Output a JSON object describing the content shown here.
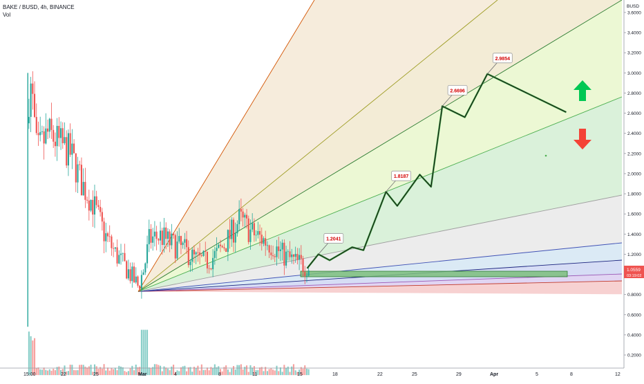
{
  "header": {
    "symbol_line": "BAKE / BUSD, 4h, BINANCE",
    "indicator": "Vol"
  },
  "price_axis": {
    "unit": "BUSD",
    "last_price": "1.0559",
    "countdown": "03:19:02"
  },
  "colors": {
    "up_candle": "#26a69a",
    "down_candle": "#ef5350",
    "path_green": "#4caf50",
    "label_red": "#d50000",
    "arrow_up": "#00c853",
    "arrow_down": "#f44336"
  },
  "icons": {
    "up": "arrow-up-icon",
    "down": "arrow-down-icon"
  },
  "chart_data": {
    "type": "candlestick",
    "title": "BAKE / BUSD, 4h, BINANCE",
    "x_ticks": [
      "15:00",
      "22",
      "25",
      "Mar",
      "4",
      "8",
      "11",
      "15",
      "18",
      "22",
      "25",
      "29",
      "Apr",
      "5",
      "8",
      "12"
    ],
    "y_ticks": [
      "3.6000",
      "3.4000",
      "3.2000",
      "3.0000",
      "2.8000",
      "2.6000",
      "2.4000",
      "2.2000",
      "2.0000",
      "1.8000",
      "1.6000",
      "1.4000",
      "1.2000",
      "1.0000",
      "0.8000",
      "0.6000",
      "0.4000",
      "0.2000"
    ],
    "y_range": [
      0.0,
      3.65
    ],
    "price_panel_range": [
      0.8,
      3.65
    ],
    "volume_panel_range": [
      0.0,
      0.6
    ],
    "candles_summary": [
      {
        "period": "Feb 19-20",
        "high": 3.0,
        "low": 0.48
      },
      {
        "period": "Feb 20-24",
        "high": 2.7,
        "low": 1.55
      },
      {
        "period": "Feb 25-Mar 1",
        "high": 1.8,
        "low": 0.83
      },
      {
        "period": "Mar 2-8",
        "high": 1.45,
        "low": 1.1
      },
      {
        "period": "Mar 9-11",
        "high": 1.6,
        "low": 1.2
      },
      {
        "period": "Mar 12-16",
        "high": 1.28,
        "low": 1.06
      }
    ],
    "projection_labels": [
      "1.2041",
      "1.8187",
      "2.6696",
      "2.9854"
    ],
    "projection_path": [
      {
        "date": "Mar 16",
        "price": 1.06
      },
      {
        "date": "Mar 17",
        "price": 1.2
      },
      {
        "date": "Mar 18",
        "price": 1.14
      },
      {
        "date": "Mar 20",
        "price": 1.27
      },
      {
        "date": "Mar 21",
        "price": 1.24
      },
      {
        "date": "Mar 23",
        "price": 1.82
      },
      {
        "date": "Mar 24",
        "price": 1.68
      },
      {
        "date": "Mar 26",
        "price": 1.99
      },
      {
        "date": "Mar 27",
        "price": 1.87
      },
      {
        "date": "Mar 28",
        "price": 2.67
      },
      {
        "date": "Mar 30",
        "price": 2.56
      },
      {
        "date": "Apr 1",
        "price": 2.99
      },
      {
        "date": "Apr 8",
        "price": 2.61
      }
    ],
    "fan": {
      "origin": {
        "date": "Mar 1",
        "price": 0.83
      },
      "lines": [
        {
          "color": "#c0392b"
        },
        {
          "color": "#9b59b6"
        },
        {
          "color": "#1a237e"
        },
        {
          "color": "#3f51b5"
        },
        {
          "color": "#9e9e9e"
        },
        {
          "color": "#4caf50"
        },
        {
          "color": "#2e7d32"
        },
        {
          "color": "#9e9d24"
        },
        {
          "color": "#d35400"
        }
      ]
    },
    "grid": false
  }
}
